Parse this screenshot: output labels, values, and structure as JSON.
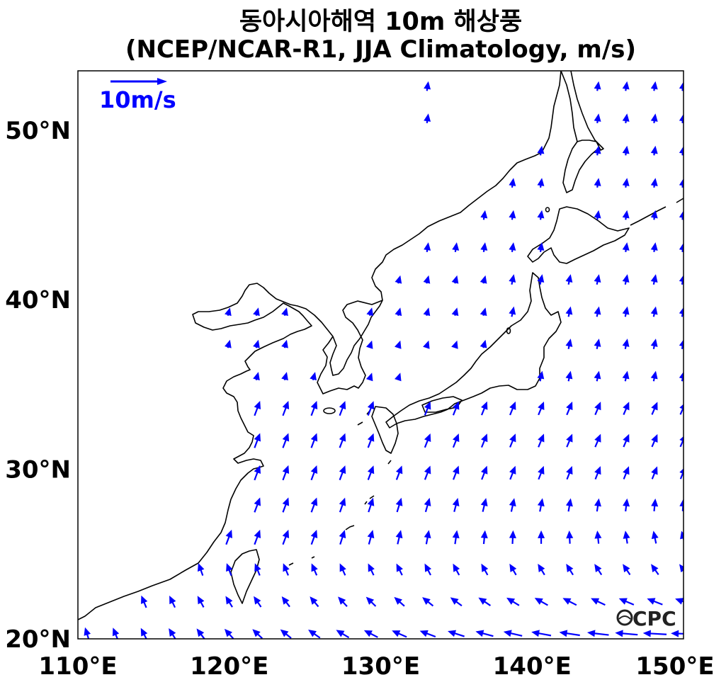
{
  "title": {
    "line1": "동아시아해역 10m 해상풍",
    "line2": "(NCEP/NCAR-R1, JJA Climatology, m/s)"
  },
  "map": {
    "lon_range": [
      110,
      150
    ],
    "lat_range": [
      20,
      53.5
    ],
    "x_ticks": [
      "110°E",
      "120°E",
      "130°E",
      "140°E",
      "150°E"
    ],
    "y_ticks": [
      "20°N",
      "30°N",
      "40°N",
      "50°N"
    ],
    "reference_vector": {
      "label": "10m/s",
      "magnitude": 10
    },
    "logo": "OCPC",
    "arrow_color": "#0000ff",
    "grid_lon_start": 110.6,
    "grid_lon_step": 1.875,
    "grid_lat_start": 20.3,
    "grid_lat_step": 1.9
  }
}
